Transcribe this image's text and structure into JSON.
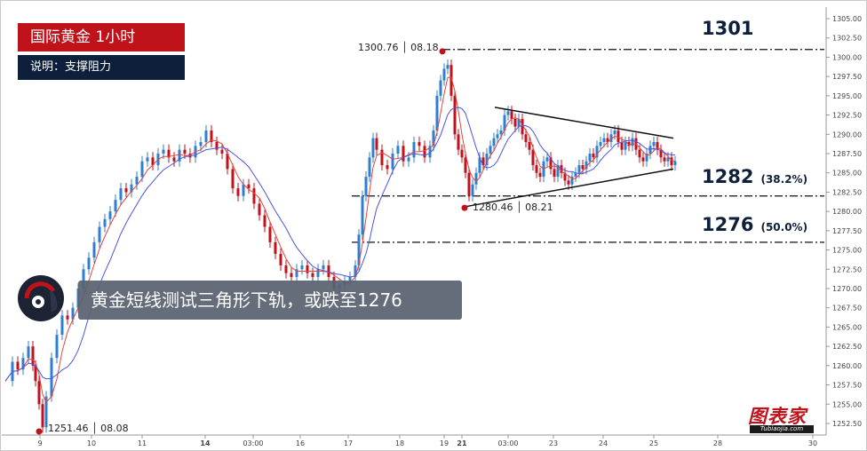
{
  "header": {
    "title": "国际黄金  1小时",
    "description": "说明：支撑阻力"
  },
  "headline": "黄金短线测试三角形下轨，或跌至1276",
  "logo": {
    "text": "图表家",
    "sub": "Tubiaojia.com"
  },
  "colors": {
    "up_candle": "#2f7fd1",
    "down_candle": "#c0121b",
    "ma_fast": "#e8433a",
    "ma_slow": "#4a55e0",
    "level_line": "#111111",
    "marker": "#c0121b",
    "title_bg": "#c0121b",
    "desc_bg": "#0d1f3a"
  },
  "chart_data": {
    "type": "candlestick",
    "instrument": "国际黄金",
    "timeframe": "1小时",
    "x_ticks": [
      "9",
      "10",
      "11",
      "14",
      "03:00",
      "16",
      "17",
      "18",
      "19",
      "21",
      "03:00",
      "23",
      "24",
      "25",
      "28",
      "30"
    ],
    "y_ticks": [
      "1252.50",
      "1255.00",
      "1257.50",
      "1260.00",
      "1262.50",
      "1265.00",
      "1267.50",
      "1270.00",
      "1272.50",
      "1275.00",
      "1277.50",
      "1280.00",
      "1282.50",
      "1285.00",
      "1287.50",
      "1290.00",
      "1292.50",
      "1295.00",
      "1297.50",
      "1300.00",
      "1302.50",
      "1305.00"
    ],
    "ylim": [
      1251.0,
      1306.5
    ],
    "levels": [
      {
        "value": 1301,
        "label": "1301",
        "note": ""
      },
      {
        "value": 1282,
        "label": "1282",
        "note": "(38.2%)"
      },
      {
        "value": 1276,
        "label": "1276",
        "note": "(50.0%)"
      }
    ],
    "annotated_points": [
      {
        "price": 1300.76,
        "date": "08.18",
        "label": "1300.76 │ 08.18"
      },
      {
        "price": 1280.46,
        "date": "08.21",
        "label": "1280.46 │ 08.21"
      },
      {
        "price": 1251.46,
        "date": "08.08",
        "label": "1251.46 │ 08.08"
      }
    ],
    "triangle": {
      "upper": [
        [
          1293.5,
          "21"
        ],
        [
          1289.5,
          "25"
        ]
      ],
      "lower": [
        [
          1280.5,
          "21"
        ],
        [
          1285.5,
          "25"
        ]
      ]
    },
    "close_path": [
      [
        0,
        1258.0
      ],
      [
        8,
        1260.5
      ],
      [
        14,
        1259.5
      ],
      [
        20,
        1261.0
      ],
      [
        26,
        1262.5
      ],
      [
        31,
        1260.0
      ],
      [
        34,
        1258.0
      ],
      [
        38,
        1255.0
      ],
      [
        42,
        1252.0
      ],
      [
        46,
        1256.0
      ],
      [
        52,
        1261.0
      ],
      [
        58,
        1264.0
      ],
      [
        64,
        1266.5
      ],
      [
        70,
        1266.0
      ],
      [
        76,
        1267.5
      ],
      [
        82,
        1270.0
      ],
      [
        88,
        1272.5
      ],
      [
        94,
        1274.0
      ],
      [
        100,
        1276.0
      ],
      [
        106,
        1278.0
      ],
      [
        112,
        1279.0
      ],
      [
        118,
        1280.0
      ],
      [
        124,
        1281.5
      ],
      [
        130,
        1283.0
      ],
      [
        136,
        1282.5
      ],
      [
        142,
        1283.5
      ],
      [
        148,
        1284.5
      ],
      [
        154,
        1286.5
      ],
      [
        160,
        1287.0
      ],
      [
        166,
        1286.0
      ],
      [
        172,
        1287.5
      ],
      [
        178,
        1288.0
      ],
      [
        184,
        1287.0
      ],
      [
        190,
        1286.5
      ],
      [
        196,
        1288.0
      ],
      [
        202,
        1287.5
      ],
      [
        208,
        1287.0
      ],
      [
        214,
        1288.5
      ],
      [
        220,
        1289.0
      ],
      [
        226,
        1290.5
      ],
      [
        232,
        1289.0
      ],
      [
        238,
        1288.0
      ],
      [
        244,
        1287.5
      ],
      [
        250,
        1285.5
      ],
      [
        256,
        1283.0
      ],
      [
        262,
        1282.0
      ],
      [
        268,
        1283.5
      ],
      [
        274,
        1283.0
      ],
      [
        280,
        1281.0
      ],
      [
        286,
        1279.5
      ],
      [
        292,
        1278.0
      ],
      [
        298,
        1276.0
      ],
      [
        304,
        1274.5
      ],
      [
        310,
        1273.0
      ],
      [
        316,
        1272.0
      ],
      [
        322,
        1271.5
      ],
      [
        328,
        1272.5
      ],
      [
        334,
        1273.0
      ],
      [
        340,
        1272.0
      ],
      [
        346,
        1271.5
      ],
      [
        352,
        1272.5
      ],
      [
        358,
        1273.0
      ],
      [
        364,
        1271.5
      ],
      [
        370,
        1270.0
      ],
      [
        376,
        1270.5
      ],
      [
        382,
        1271.0
      ],
      [
        388,
        1271.5
      ],
      [
        394,
        1273.0
      ],
      [
        398,
        1277.0
      ],
      [
        402,
        1282.0
      ],
      [
        406,
        1284.5
      ],
      [
        410,
        1287.0
      ],
      [
        414,
        1289.5
      ],
      [
        418,
        1288.0
      ],
      [
        424,
        1286.0
      ],
      [
        430,
        1285.5
      ],
      [
        436,
        1287.5
      ],
      [
        442,
        1288.5
      ],
      [
        448,
        1286.5
      ],
      [
        454,
        1287.0
      ],
      [
        460,
        1289.0
      ],
      [
        466,
        1288.5
      ],
      [
        472,
        1287.0
      ],
      [
        478,
        1288.5
      ],
      [
        482,
        1290.5
      ],
      [
        486,
        1295.0
      ],
      [
        490,
        1297.0
      ],
      [
        494,
        1298.5
      ],
      [
        498,
        1299.0
      ],
      [
        502,
        1295.0
      ],
      [
        506,
        1290.0
      ],
      [
        510,
        1288.0
      ],
      [
        514,
        1287.0
      ],
      [
        518,
        1285.0
      ],
      [
        522,
        1282.0
      ],
      [
        526,
        1283.5
      ],
      [
        530,
        1285.0
      ],
      [
        534,
        1287.0
      ],
      [
        538,
        1286.0
      ],
      [
        542,
        1287.5
      ],
      [
        546,
        1288.5
      ],
      [
        550,
        1289.5
      ],
      [
        554,
        1290.0
      ],
      [
        558,
        1290.5
      ],
      [
        562,
        1292.5
      ],
      [
        566,
        1293.0
      ],
      [
        570,
        1292.0
      ],
      [
        574,
        1291.0
      ],
      [
        578,
        1292.0
      ],
      [
        582,
        1290.0
      ],
      [
        586,
        1289.0
      ],
      [
        590,
        1288.0
      ],
      [
        594,
        1286.0
      ],
      [
        598,
        1285.0
      ],
      [
        602,
        1284.5
      ],
      [
        606,
        1286.5
      ],
      [
        610,
        1287.0
      ],
      [
        614,
        1285.5
      ],
      [
        618,
        1284.5
      ],
      [
        622,
        1286.0
      ],
      [
        626,
        1285.0
      ],
      [
        630,
        1284.0
      ],
      [
        634,
        1283.5
      ],
      [
        638,
        1284.5
      ],
      [
        642,
        1285.0
      ],
      [
        646,
        1286.0
      ],
      [
        650,
        1285.5
      ],
      [
        654,
        1286.5
      ],
      [
        658,
        1287.5
      ],
      [
        662,
        1287.0
      ],
      [
        666,
        1288.5
      ],
      [
        670,
        1289.0
      ],
      [
        674,
        1289.5
      ],
      [
        678,
        1289.0
      ],
      [
        682,
        1290.0
      ],
      [
        686,
        1290.5
      ],
      [
        690,
        1289.0
      ],
      [
        694,
        1288.0
      ],
      [
        698,
        1289.0
      ],
      [
        702,
        1288.5
      ],
      [
        706,
        1289.5
      ],
      [
        710,
        1288.0
      ],
      [
        714,
        1287.0
      ],
      [
        718,
        1286.5
      ],
      [
        722,
        1287.5
      ],
      [
        726,
        1288.5
      ],
      [
        730,
        1289.0
      ],
      [
        734,
        1288.0
      ],
      [
        738,
        1287.0
      ],
      [
        742,
        1286.5
      ],
      [
        746,
        1287.0
      ],
      [
        750,
        1286.0
      ],
      [
        754,
        1286.5
      ]
    ]
  }
}
